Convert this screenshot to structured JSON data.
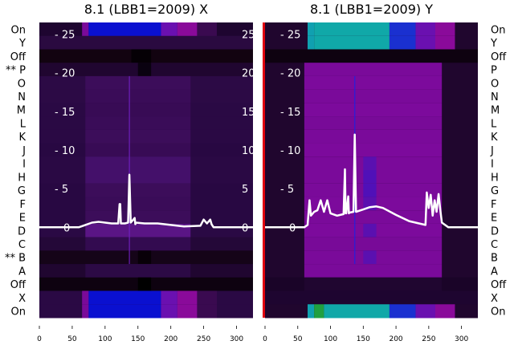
{
  "chart_data": [
    {
      "type": "heatmap",
      "title": "8.1 (LBB1=2009) X",
      "row_labels": [
        "On",
        "Y",
        "Off",
        "** P",
        "O",
        "N",
        "M",
        "L",
        "K",
        "J",
        "I",
        "H",
        "G",
        "F",
        "E",
        "D",
        "C",
        "** B",
        "A",
        "Off",
        "X",
        "On"
      ],
      "x_ticks": [
        0,
        50,
        100,
        150,
        200,
        250,
        300
      ],
      "xlim": [
        0,
        325
      ],
      "y_ticks": [
        0,
        5,
        10,
        15,
        20,
        25
      ],
      "ylim": [
        -11.7,
        26.5
      ],
      "right_tick_labels": [
        "0",
        "5",
        "10",
        "15",
        "20",
        "25"
      ],
      "rows": [
        {
          "base": "#1e0530",
          "segs": [
            [
              65,
              75,
              "#7a0a9a"
            ],
            [
              75,
              185,
              "#0a10d0"
            ],
            [
              185,
              210,
              "#6a10b0"
            ],
            [
              210,
              240,
              "#8a0a9a"
            ],
            [
              240,
              270,
              "#3a0a50"
            ]
          ]
        },
        {
          "base": "#2a0a40",
          "segs": []
        },
        {
          "base": "#120310",
          "segs": [
            [
              140,
              170,
              "#050005"
            ]
          ]
        },
        {
          "base": "#200630",
          "segs": [
            [
              150,
              170,
              "#0a0210"
            ]
          ]
        },
        {
          "base": "#2c0a45",
          "segs": [
            [
              70,
              230,
              "#3c0d5a"
            ]
          ]
        },
        {
          "base": "#2c0a45",
          "segs": [
            [
              70,
              230,
              "#3a0c58"
            ]
          ]
        },
        {
          "base": "#2a0944",
          "segs": [
            [
              70,
              230,
              "#380b55"
            ]
          ]
        },
        {
          "base": "#2a0944",
          "segs": [
            [
              70,
              230,
              "#3a0c58"
            ]
          ]
        },
        {
          "base": "#2a0944",
          "segs": [
            [
              70,
              230,
              "#3c0d5a"
            ]
          ]
        },
        {
          "base": "#280842",
          "segs": [
            [
              70,
              230,
              "#380b55"
            ]
          ]
        },
        {
          "base": "#2a0944",
          "segs": [
            [
              70,
              230,
              "#44106a"
            ]
          ]
        },
        {
          "base": "#2a0944",
          "segs": [
            [
              70,
              230,
              "#44106a"
            ]
          ]
        },
        {
          "base": "#280842",
          "segs": [
            [
              70,
              230,
              "#3c0d5a"
            ]
          ]
        },
        {
          "base": "#280842",
          "segs": [
            [
              70,
              230,
              "#3a0c58"
            ]
          ]
        },
        {
          "base": "#280842",
          "segs": [
            [
              70,
              230,
              "#3c0d5a"
            ]
          ]
        },
        {
          "base": "#2a0944",
          "segs": [
            [
              70,
              230,
              "#5a1585"
            ]
          ]
        },
        {
          "base": "#240838",
          "segs": [
            [
              70,
              230,
              "#330b50"
            ]
          ]
        },
        {
          "base": "#150418",
          "segs": [
            [
              150,
              170,
              "#080008"
            ]
          ]
        },
        {
          "base": "#200630",
          "segs": [
            [
              70,
              230,
              "#2c0a45"
            ]
          ]
        },
        {
          "base": "#0e0210",
          "segs": [
            [
              150,
              170,
              "#000000"
            ]
          ]
        },
        {
          "base": "#2a0944",
          "segs": [
            [
              65,
              75,
              "#7a0a9a"
            ],
            [
              75,
              185,
              "#0a10d0"
            ],
            [
              185,
              210,
              "#6a10b0"
            ],
            [
              210,
              240,
              "#8a0a9a"
            ],
            [
              240,
              270,
              "#3a0a50"
            ]
          ]
        },
        {
          "base": "#2a0944",
          "segs": [
            [
              65,
              75,
              "#7a0a9a"
            ],
            [
              75,
              185,
              "#0a10d0"
            ],
            [
              185,
              210,
              "#6a10b0"
            ],
            [
              210,
              240,
              "#8a0a9a"
            ],
            [
              240,
              270,
              "#3a0a50"
            ]
          ]
        }
      ],
      "series": [
        {
          "name": "trace",
          "x": [
            0,
            60,
            70,
            80,
            90,
            100,
            110,
            120,
            122,
            123,
            124,
            130,
            135,
            137,
            139,
            145,
            146,
            147,
            160,
            180,
            200,
            220,
            245,
            250,
            255,
            260,
            262,
            265,
            325
          ],
          "y": [
            0,
            0,
            0.3,
            0.6,
            0.7,
            0.6,
            0.5,
            0.5,
            3,
            3,
            0.5,
            0.5,
            0.6,
            6.8,
            0.6,
            1.2,
            0.4,
            0.6,
            0.5,
            0.5,
            0.3,
            0.1,
            0.2,
            1,
            0.5,
            1,
            0.4,
            0,
            0
          ]
        }
      ]
    },
    {
      "type": "heatmap",
      "title": "8.1 (LBB1=2009) Y",
      "row_labels": [
        "On",
        "Y",
        "Off",
        "P",
        "O",
        "N",
        "M",
        "L",
        "K",
        "J",
        "I",
        "H",
        "G",
        "F",
        "E",
        "D",
        "C",
        "B",
        "A",
        "Off",
        "X",
        "On"
      ],
      "x_ticks": [
        0,
        50,
        100,
        150,
        200,
        250,
        300
      ],
      "xlim": [
        0,
        325
      ],
      "y_ticks": [
        0,
        5,
        10,
        15,
        20,
        25
      ],
      "ylim": [
        -11.7,
        26.5
      ],
      "rows": [
        {
          "base": "#20062e",
          "segs": [
            [
              65,
              75,
              "#10a0b0"
            ],
            [
              75,
              190,
              "#10a8a8"
            ],
            [
              190,
              230,
              "#1a30d0"
            ],
            [
              230,
              260,
              "#6a10b0"
            ],
            [
              260,
              290,
              "#8a0a9a"
            ]
          ]
        },
        {
          "base": "#20062e",
          "segs": [
            [
              65,
              75,
              "#10a0b0"
            ],
            [
              75,
              190,
              "#10a8a8"
            ],
            [
              190,
              230,
              "#1a30d0"
            ],
            [
              230,
              260,
              "#6a10b0"
            ],
            [
              260,
              290,
              "#8a0a9a"
            ]
          ]
        },
        {
          "base": "#0e0210",
          "segs": []
        },
        {
          "base": "#20062e",
          "segs": [
            [
              60,
              270,
              "#7a0a9a"
            ]
          ]
        },
        {
          "base": "#20062e",
          "segs": [
            [
              60,
              270,
              "#7c0a9c"
            ]
          ]
        },
        {
          "base": "#20062e",
          "segs": [
            [
              60,
              270,
              "#7a0a9a"
            ]
          ]
        },
        {
          "base": "#20062e",
          "segs": [
            [
              60,
              270,
              "#7c0a9c"
            ]
          ]
        },
        {
          "base": "#20062e",
          "segs": [
            [
              60,
              270,
              "#780a98"
            ]
          ]
        },
        {
          "base": "#20062e",
          "segs": [
            [
              60,
              270,
              "#7a0a9a"
            ]
          ]
        },
        {
          "base": "#20062e",
          "segs": [
            [
              60,
              270,
              "#7c0a9c"
            ]
          ]
        },
        {
          "base": "#20062e",
          "segs": [
            [
              60,
              270,
              "#7a0a9a"
            ],
            [
              150,
              170,
              "#5a10b0"
            ]
          ]
        },
        {
          "base": "#20062e",
          "segs": [
            [
              60,
              270,
              "#7a0a9a"
            ],
            [
              150,
              170,
              "#5010b8"
            ]
          ]
        },
        {
          "base": "#20062e",
          "segs": [
            [
              60,
              270,
              "#7a0a9a"
            ],
            [
              150,
              170,
              "#5010b8"
            ]
          ]
        },
        {
          "base": "#20062e",
          "segs": [
            [
              60,
              270,
              "#7c0a9c"
            ],
            [
              150,
              170,
              "#5a10b0"
            ]
          ]
        },
        {
          "base": "#20062e",
          "segs": [
            [
              60,
              270,
              "#7a0a9a"
            ]
          ]
        },
        {
          "base": "#20062e",
          "segs": [
            [
              60,
              270,
              "#7c0a9c"
            ],
            [
              150,
              170,
              "#5a10b0"
            ]
          ]
        },
        {
          "base": "#20062e",
          "segs": [
            [
              60,
              270,
              "#780a98"
            ]
          ]
        },
        {
          "base": "#20062e",
          "segs": [
            [
              60,
              270,
              "#7a0a9a"
            ],
            [
              150,
              170,
              "#5a10b0"
            ]
          ]
        },
        {
          "base": "#20062e",
          "segs": [
            [
              60,
              270,
              "#7a0a9a"
            ]
          ]
        },
        {
          "base": "#1a0428",
          "segs": [
            [
              60,
              270,
              "#200630"
            ]
          ]
        },
        {
          "base": "#1e0530",
          "segs": []
        },
        {
          "base": "#20062e",
          "segs": [
            [
              65,
              75,
              "#10a0b0"
            ],
            [
              75,
              90,
              "#20a040"
            ],
            [
              90,
              190,
              "#10a8a8"
            ],
            [
              190,
              230,
              "#1a30d0"
            ],
            [
              230,
              260,
              "#6a10b0"
            ],
            [
              260,
              290,
              "#8a0a9a"
            ]
          ]
        }
      ],
      "series": [
        {
          "name": "trace",
          "x": [
            0,
            60,
            65,
            68,
            70,
            75,
            80,
            85,
            90,
            95,
            100,
            110,
            120,
            122,
            123,
            124,
            127,
            128,
            129,
            135,
            137,
            139,
            150,
            160,
            170,
            180,
            200,
            220,
            245,
            247,
            250,
            253,
            256,
            259,
            262,
            265,
            268,
            270,
            280,
            325
          ],
          "y": [
            0,
            0,
            0.3,
            3.5,
            1.5,
            2,
            2.2,
            3.5,
            2,
            3.5,
            1.8,
            1.5,
            1.7,
            7.5,
            1.8,
            1.8,
            4,
            1.8,
            1.9,
            2,
            12,
            2,
            2.3,
            2.6,
            2.7,
            2.5,
            1.6,
            0.8,
            0.3,
            4.5,
            2.5,
            4.2,
            1.5,
            3.5,
            2,
            4.3,
            2,
            0.6,
            0,
            0
          ]
        }
      ]
    }
  ]
}
